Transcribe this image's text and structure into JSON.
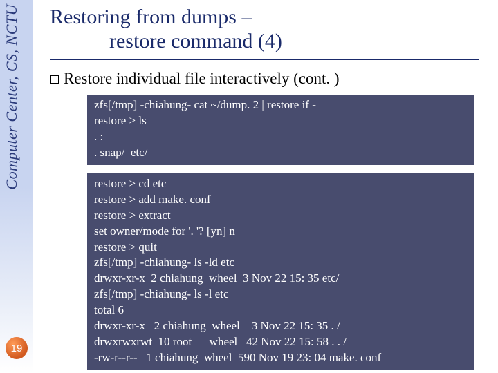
{
  "sidebar": {
    "text": "Computer Center, CS, NCTU",
    "text_color": "#2a3a7a",
    "gradient_top": "#c8d4f0",
    "gradient_bottom": "#ffffff"
  },
  "page_number": {
    "value": "19",
    "bg_color_light": "#ff9a56",
    "bg_color_dark": "#d15a20",
    "text_color": "#ffffff"
  },
  "title": {
    "line1": "Restoring from dumps –",
    "line2": "restore command (4)",
    "color": "#1a2a6a",
    "fontsize": 30
  },
  "rule_color": "#1a2a6a",
  "bullet": {
    "text": "Restore individual file interactively (cont. )"
  },
  "terminal1": {
    "bg": "#484c6e",
    "fg": "#ffffff",
    "lines": [
      "zfs[/tmp] -chiahung- cat ~/dump. 2 | restore if -",
      "restore > ls",
      ". :",
      ". snap/  etc/"
    ]
  },
  "terminal2": {
    "bg": "#484c6e",
    "fg": "#ffffff",
    "lines": [
      "restore > cd etc",
      "restore > add make. conf",
      "restore > extract",
      "set owner/mode for '. '? [yn] n",
      "restore > quit",
      "zfs[/tmp] -chiahung- ls -ld etc",
      "drwxr-xr-x  2 chiahung  wheel  3 Nov 22 15: 35 etc/",
      "zfs[/tmp] -chiahung- ls -l etc",
      "total 6",
      "drwxr-xr-x   2 chiahung  wheel    3 Nov 22 15: 35 . /",
      "drwxrwxrwt  10 root      wheel   42 Nov 22 15: 58 . . /",
      "-rw-r--r--   1 chiahung  wheel  590 Nov 19 23: 04 make. conf"
    ]
  }
}
